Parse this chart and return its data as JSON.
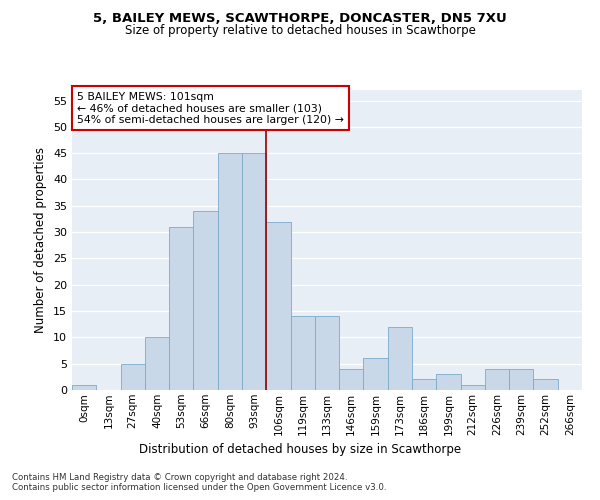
{
  "title1": "5, BAILEY MEWS, SCAWTHORPE, DONCASTER, DN5 7XU",
  "title2": "Size of property relative to detached houses in Scawthorpe",
  "xlabel": "Distribution of detached houses by size in Scawthorpe",
  "ylabel": "Number of detached properties",
  "bar_color": "#c8d8e8",
  "bar_edge_color": "#7aaac8",
  "bg_color": "#e8eef5",
  "categories": [
    "0sqm",
    "13sqm",
    "27sqm",
    "40sqm",
    "53sqm",
    "66sqm",
    "80sqm",
    "93sqm",
    "106sqm",
    "119sqm",
    "133sqm",
    "146sqm",
    "159sqm",
    "173sqm",
    "186sqm",
    "199sqm",
    "212sqm",
    "226sqm",
    "239sqm",
    "252sqm",
    "266sqm"
  ],
  "values": [
    1,
    0,
    5,
    10,
    31,
    34,
    45,
    45,
    32,
    14,
    14,
    4,
    6,
    12,
    2,
    3,
    1,
    4,
    4,
    2,
    0
  ],
  "vline_x": 7.5,
  "vline_color": "#990000",
  "annotation_text": "5 BAILEY MEWS: 101sqm\n← 46% of detached houses are smaller (103)\n54% of semi-detached houses are larger (120) →",
  "annotation_box_color": "#ffffff",
  "annotation_box_edge": "#cc0000",
  "ylim": [
    0,
    57
  ],
  "yticks": [
    0,
    5,
    10,
    15,
    20,
    25,
    30,
    35,
    40,
    45,
    50,
    55
  ],
  "footer1": "Contains HM Land Registry data © Crown copyright and database right 2024.",
  "footer2": "Contains public sector information licensed under the Open Government Licence v3.0."
}
